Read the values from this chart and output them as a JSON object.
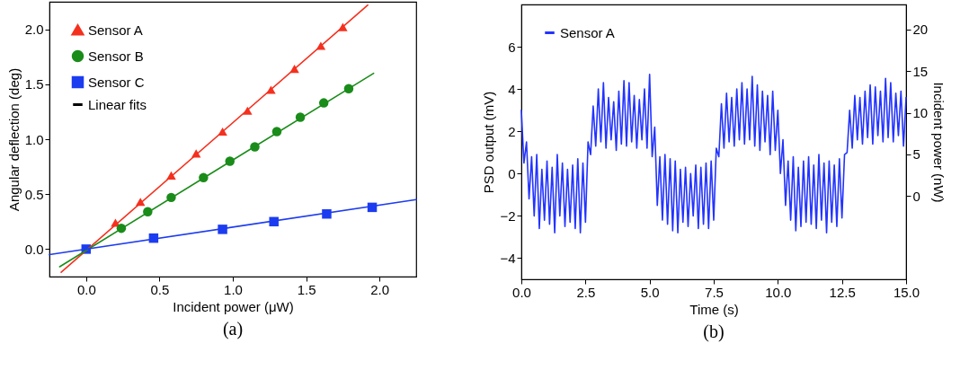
{
  "chart_data": [
    {
      "type": "scatter",
      "xlabel": "Incident power (μW)",
      "ylabel": "Angular deflection (deg)",
      "xlim": [
        -0.25,
        2.25
      ],
      "ylim": [
        -0.25,
        2.25
      ],
      "xticks": [
        {
          "value": 0,
          "label": "0.0"
        },
        {
          "value": 0.5,
          "label": "0.5"
        },
        {
          "value": 1,
          "label": "1.0"
        },
        {
          "value": 1.5,
          "label": "1.5"
        },
        {
          "value": 2,
          "label": "2.0"
        }
      ],
      "yticks": [
        {
          "value": 0,
          "label": "0.0"
        },
        {
          "value": 0.5,
          "label": "0.5"
        },
        {
          "value": 1,
          "label": "1.0"
        },
        {
          "value": 1.5,
          "label": "1.5"
        },
        {
          "value": 2,
          "label": "2.0"
        }
      ],
      "legend": "top left",
      "annotations": [
        "(a)"
      ],
      "series": [
        {
          "name": "Sensor A",
          "marker": "triangle",
          "color": "#f5301e",
          "x": [
            0.2,
            0.37,
            0.58,
            0.75,
            0.93,
            1.1,
            1.26,
            1.42,
            1.6,
            1.75
          ],
          "values": [
            0.24,
            0.43,
            0.67,
            0.87,
            1.07,
            1.26,
            1.45,
            1.64,
            1.85,
            2.02
          ]
        },
        {
          "name": "Sensor B",
          "marker": "circle",
          "color": "#1a8c1a",
          "x": [
            0.24,
            0.42,
            0.58,
            0.8,
            0.98,
            1.15,
            1.3,
            1.46,
            1.62,
            1.79
          ],
          "values": [
            0.19,
            0.34,
            0.47,
            0.65,
            0.8,
            0.93,
            1.07,
            1.2,
            1.33,
            1.46
          ]
        },
        {
          "name": "Sensor C",
          "marker": "square",
          "color": "#1c3cf0",
          "x": [
            0,
            0.46,
            0.93,
            1.28,
            1.64,
            1.95
          ],
          "values": [
            0,
            0.1,
            0.18,
            0.25,
            0.32,
            0.38
          ]
        },
        {
          "name": "Linear fits",
          "type": "line",
          "color": "#000000"
        },
        {
          "type": "line",
          "color": "#f5301e",
          "x": [
            -0.17,
            1.92
          ],
          "values": [
            -0.21,
            2.22
          ]
        },
        {
          "type": "line",
          "color": "#1a8c1a",
          "x": [
            -0.18,
            1.96
          ],
          "values": [
            -0.16,
            1.6
          ]
        },
        {
          "type": "line",
          "color": "#1c3cf0",
          "x": [
            -0.25,
            2.25
          ],
          "values": [
            -0.05,
            0.45
          ]
        }
      ]
    },
    {
      "type": "line",
      "xlabel": "Time (s)",
      "ylabel": "PSD output (mV)",
      "y2label": "Incident power (nW)",
      "xlim": [
        0,
        15
      ],
      "ylim": [
        -5,
        8
      ],
      "y2lim": [
        -10,
        23
      ],
      "xticks": [
        {
          "value": 0,
          "label": "0.0"
        },
        {
          "value": 2.5,
          "label": "2.5"
        },
        {
          "value": 5,
          "label": "5.0"
        },
        {
          "value": 7.5,
          "label": "7.5"
        },
        {
          "value": 10,
          "label": "10.0"
        },
        {
          "value": 12.5,
          "label": "12.5"
        },
        {
          "value": 15,
          "label": "15.0"
        }
      ],
      "yticks": [
        -4,
        -2,
        0,
        2,
        4,
        6
      ],
      "y2ticks": [
        0,
        5,
        10,
        15,
        20
      ],
      "legend": "top left",
      "annotations": [
        "(b)"
      ],
      "series": [
        {
          "name": "Sensor A",
          "color": "#2233ff",
          "x": [
            0,
            0.1,
            0.2,
            0.3,
            0.4,
            0.5,
            0.6,
            0.7,
            0.8,
            0.9,
            1,
            1.1,
            1.2,
            1.3,
            1.4,
            1.5,
            1.6,
            1.7,
            1.8,
            1.9,
            2,
            2.1,
            2.2,
            2.3,
            2.4,
            2.5,
            2.6,
            2.7,
            2.8,
            2.9,
            3,
            3.1,
            3.2,
            3.3,
            3.4,
            3.5,
            3.6,
            3.7,
            3.8,
            3.9,
            4,
            4.1,
            4.2,
            4.3,
            4.4,
            4.5,
            4.6,
            4.7,
            4.8,
            4.9,
            5,
            5.1,
            5.2,
            5.3,
            5.4,
            5.5,
            5.6,
            5.7,
            5.8,
            5.9,
            6,
            6.1,
            6.2,
            6.3,
            6.4,
            6.5,
            6.6,
            6.7,
            6.8,
            6.9,
            7,
            7.1,
            7.2,
            7.3,
            7.4,
            7.5,
            7.6,
            7.7,
            7.8,
            7.9,
            8,
            8.1,
            8.2,
            8.3,
            8.4,
            8.5,
            8.6,
            8.7,
            8.8,
            8.9,
            9,
            9.1,
            9.2,
            9.3,
            9.4,
            9.5,
            9.6,
            9.7,
            9.8,
            9.9,
            10,
            10.1,
            10.2,
            10.3,
            10.4,
            10.5,
            10.6,
            10.7,
            10.8,
            10.9,
            11,
            11.1,
            11.2,
            11.3,
            11.4,
            11.5,
            11.6,
            11.7,
            11.8,
            11.9,
            12,
            12.1,
            12.2,
            12.3,
            12.4,
            12.5,
            12.6,
            12.7,
            12.8,
            12.9,
            13,
            13.1,
            13.2,
            13.3,
            13.4,
            13.5,
            13.6,
            13.7,
            13.8,
            13.9,
            14,
            14.1,
            14.2,
            14.3,
            14.4,
            14.5,
            14.6,
            14.7,
            14.8,
            14.9,
            15
          ],
          "values": [
            3,
            0.5,
            1.5,
            -1.2,
            0.8,
            -2,
            0.9,
            -2.6,
            0.2,
            -2.2,
            0.6,
            -2.4,
            0.3,
            -2.8,
            0.9,
            -2,
            0.5,
            -2.5,
            0.2,
            -2.3,
            0.4,
            -2.6,
            0.7,
            -2.8,
            0.5,
            -2.3,
            1.5,
            0.9,
            3.2,
            1.3,
            4,
            1.5,
            4.3,
            1.2,
            3.6,
            1.6,
            3.4,
            1.1,
            3.9,
            1.4,
            4.4,
            1.3,
            4.3,
            1.5,
            3.7,
            1.2,
            3.5,
            1.6,
            4,
            1.2,
            4.7,
            0.8,
            2.2,
            -1.5,
            0.8,
            -2.2,
            0.9,
            -2.4,
            0.7,
            -2.7,
            0.6,
            -2.8,
            0.2,
            -2.3,
            0.3,
            -2.5,
            0,
            -2,
            0.4,
            -2.6,
            0.3,
            -2.4,
            0.5,
            -2.6,
            0.6,
            -2.2,
            1.2,
            0.8,
            3.3,
            1.2,
            3.8,
            1.5,
            3.6,
            1.3,
            4,
            1.6,
            4.3,
            1.4,
            4,
            1.6,
            4.6,
            1.3,
            4.2,
            1.1,
            3.9,
            1.5,
            3.7,
            0.9,
            3.9,
            1.1,
            3,
            0,
            1.6,
            -1.5,
            0.6,
            -2.2,
            0.8,
            -2.7,
            0.3,
            -2.5,
            0.6,
            -2.3,
            0.8,
            -2.4,
            0.4,
            -2.6,
            0.9,
            -2.2,
            0.5,
            -2.8,
            0.6,
            -2.3,
            0.4,
            -2.5,
            0.7,
            -2.1,
            0.9,
            1,
            3,
            1.2,
            3.7,
            1.6,
            3.6,
            1.4,
            3.9,
            1.7,
            4.2,
            1.4,
            4.1,
            1.8,
            3.9,
            1.5,
            4.5,
            1.7,
            4.3,
            1.5,
            3.8,
            1.8,
            3.9,
            1.3,
            3.6
          ]
        }
      ]
    }
  ]
}
